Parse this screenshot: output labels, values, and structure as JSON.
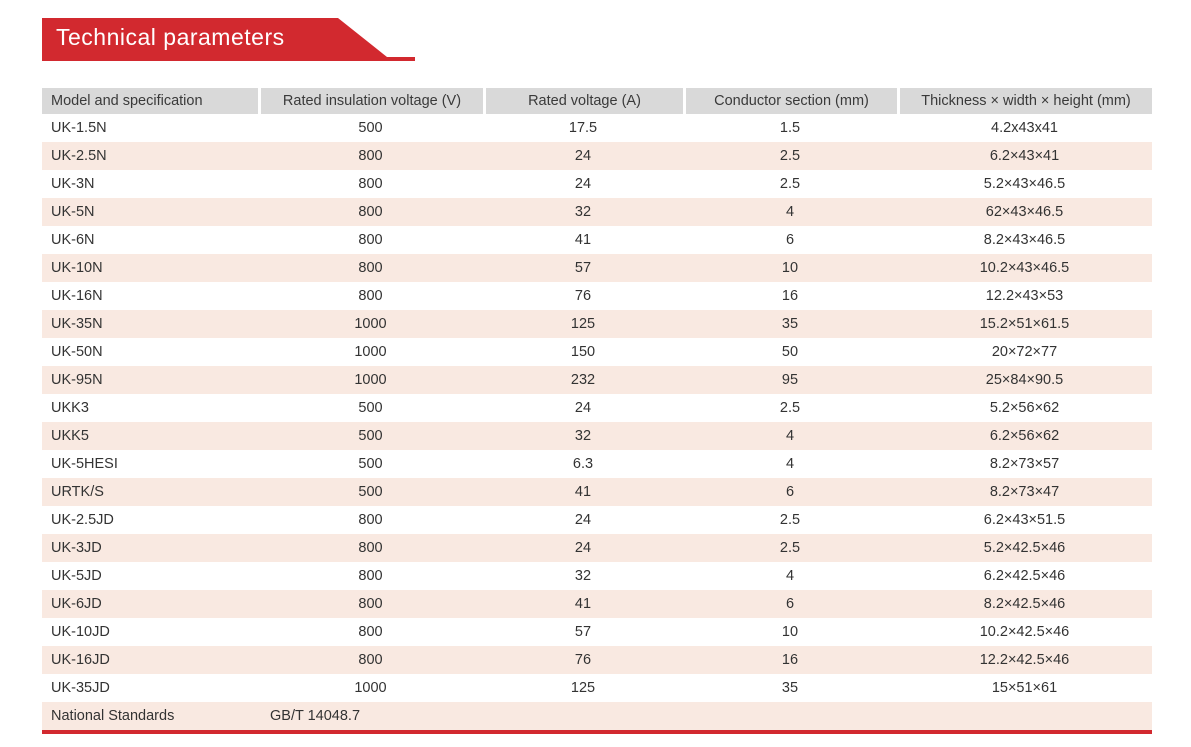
{
  "page": {
    "banner_title": "Technical parameters"
  },
  "colors": {
    "accent_red": "#d2292f",
    "header_gray": "#d9d9d9",
    "stripe_pink": "#f9e9e1",
    "text": "#333333"
  },
  "table": {
    "columns": [
      "Model and specification",
      "Rated insulation voltage (V)",
      "Rated voltage (A)",
      "Conductor section (mm)",
      "Thickness × width × height (mm)"
    ],
    "rows": [
      [
        "UK-1.5N",
        "500",
        "17.5",
        "1.5",
        "4.2x43x41"
      ],
      [
        "UK-2.5N",
        "800",
        "24",
        "2.5",
        "6.2×43×41"
      ],
      [
        "UK-3N",
        "800",
        "24",
        "2.5",
        "5.2×43×46.5"
      ],
      [
        "UK-5N",
        "800",
        "32",
        "4",
        "62×43×46.5"
      ],
      [
        "UK-6N",
        "800",
        "41",
        "6",
        "8.2×43×46.5"
      ],
      [
        "UK-10N",
        "800",
        "57",
        "10",
        "10.2×43×46.5"
      ],
      [
        "UK-16N",
        "800",
        "76",
        "16",
        "12.2×43×53"
      ],
      [
        "UK-35N",
        "1000",
        "125",
        "35",
        "15.2×51×61.5"
      ],
      [
        "UK-50N",
        "1000",
        "150",
        "50",
        "20×72×77"
      ],
      [
        "UK-95N",
        "1000",
        "232",
        "95",
        "25×84×90.5"
      ],
      [
        "UKK3",
        "500",
        "24",
        "2.5",
        "5.2×56×62"
      ],
      [
        "UKK5",
        "500",
        "32",
        "4",
        "6.2×56×62"
      ],
      [
        "UK-5HESI",
        "500",
        "6.3",
        "4",
        "8.2×73×57"
      ],
      [
        "URTK/S",
        "500",
        "41",
        "6",
        "8.2×73×47"
      ],
      [
        "UK-2.5JD",
        "800",
        "24",
        "2.5",
        "6.2×43×51.5"
      ],
      [
        "UK-3JD",
        "800",
        "24",
        "2.5",
        "5.2×42.5×46"
      ],
      [
        "UK-5JD",
        "800",
        "32",
        "4",
        "6.2×42.5×46"
      ],
      [
        "UK-6JD",
        "800",
        "41",
        "6",
        "8.2×42.5×46"
      ],
      [
        "UK-10JD",
        "800",
        "57",
        "10",
        "10.2×42.5×46"
      ],
      [
        "UK-16JD",
        "800",
        "76",
        "16",
        "12.2×42.5×46"
      ],
      [
        "UK-35JD",
        "1000",
        "125",
        "35",
        "15×51×61"
      ]
    ],
    "footer": {
      "label": "National Standards",
      "value": "GB/T 14048.7"
    }
  }
}
